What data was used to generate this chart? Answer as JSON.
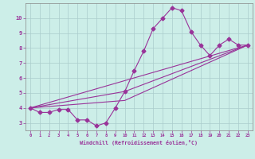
{
  "xlabel": "Windchill (Refroidissement éolien,°C)",
  "background_color": "#cceee8",
  "grid_color": "#aacccc",
  "line_color": "#993399",
  "xlim": [
    -0.5,
    23.5
  ],
  "ylim": [
    2.5,
    11.0
  ],
  "xticks": [
    0,
    1,
    2,
    3,
    4,
    5,
    6,
    7,
    8,
    9,
    10,
    11,
    12,
    13,
    14,
    15,
    16,
    17,
    18,
    19,
    20,
    21,
    22,
    23
  ],
  "yticks": [
    3,
    4,
    5,
    6,
    7,
    8,
    9,
    10
  ],
  "line1_x": [
    0,
    1,
    2,
    3,
    4,
    5,
    6,
    7,
    8,
    9,
    10,
    11,
    12,
    13,
    14,
    15,
    16,
    17,
    18,
    19,
    20,
    21,
    22,
    23
  ],
  "line1_y": [
    4.0,
    3.7,
    3.7,
    3.9,
    3.9,
    3.2,
    3.2,
    2.8,
    3.0,
    4.0,
    5.1,
    6.5,
    7.8,
    9.3,
    10.0,
    10.7,
    10.5,
    9.1,
    8.2,
    7.5,
    8.2,
    8.6,
    8.2,
    8.2
  ],
  "line2_x": [
    0,
    23
  ],
  "line2_y": [
    4.0,
    8.2
  ],
  "line3_x": [
    0,
    23
  ],
  "line3_y": [
    4.0,
    8.2
  ],
  "line4_x": [
    0,
    10,
    23
  ],
  "line4_y": [
    4.0,
    5.1,
    8.2
  ],
  "line5_x": [
    0,
    10,
    23
  ],
  "line5_y": [
    4.0,
    4.5,
    8.2
  ]
}
